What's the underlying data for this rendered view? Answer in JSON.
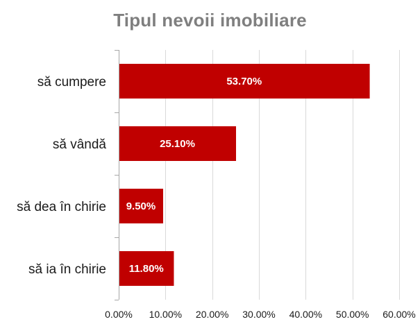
{
  "chart_data": {
    "type": "bar",
    "orientation": "horizontal",
    "title": "Tipul nevoii imobiliare",
    "categories": [
      "să cumpere",
      "să vândă",
      "să dea în chirie",
      "să ia în chirie"
    ],
    "values": [
      53.7,
      25.1,
      9.5,
      11.8
    ],
    "data_labels": [
      "53.70%",
      "25.10%",
      "9.50%",
      "11.80%"
    ],
    "xlim": [
      0,
      60
    ],
    "x_ticks": [
      0,
      10,
      20,
      30,
      40,
      50,
      60
    ],
    "x_tick_labels": [
      "0.00%",
      "10.00%",
      "20.00%",
      "30.00%",
      "40.00%",
      "50.00%",
      "60.00%"
    ],
    "grid": "vertical",
    "legend": "none",
    "bar_color": "#c00000",
    "grid_color": "#d9d9d9",
    "title_color": "#7f7f7f"
  }
}
